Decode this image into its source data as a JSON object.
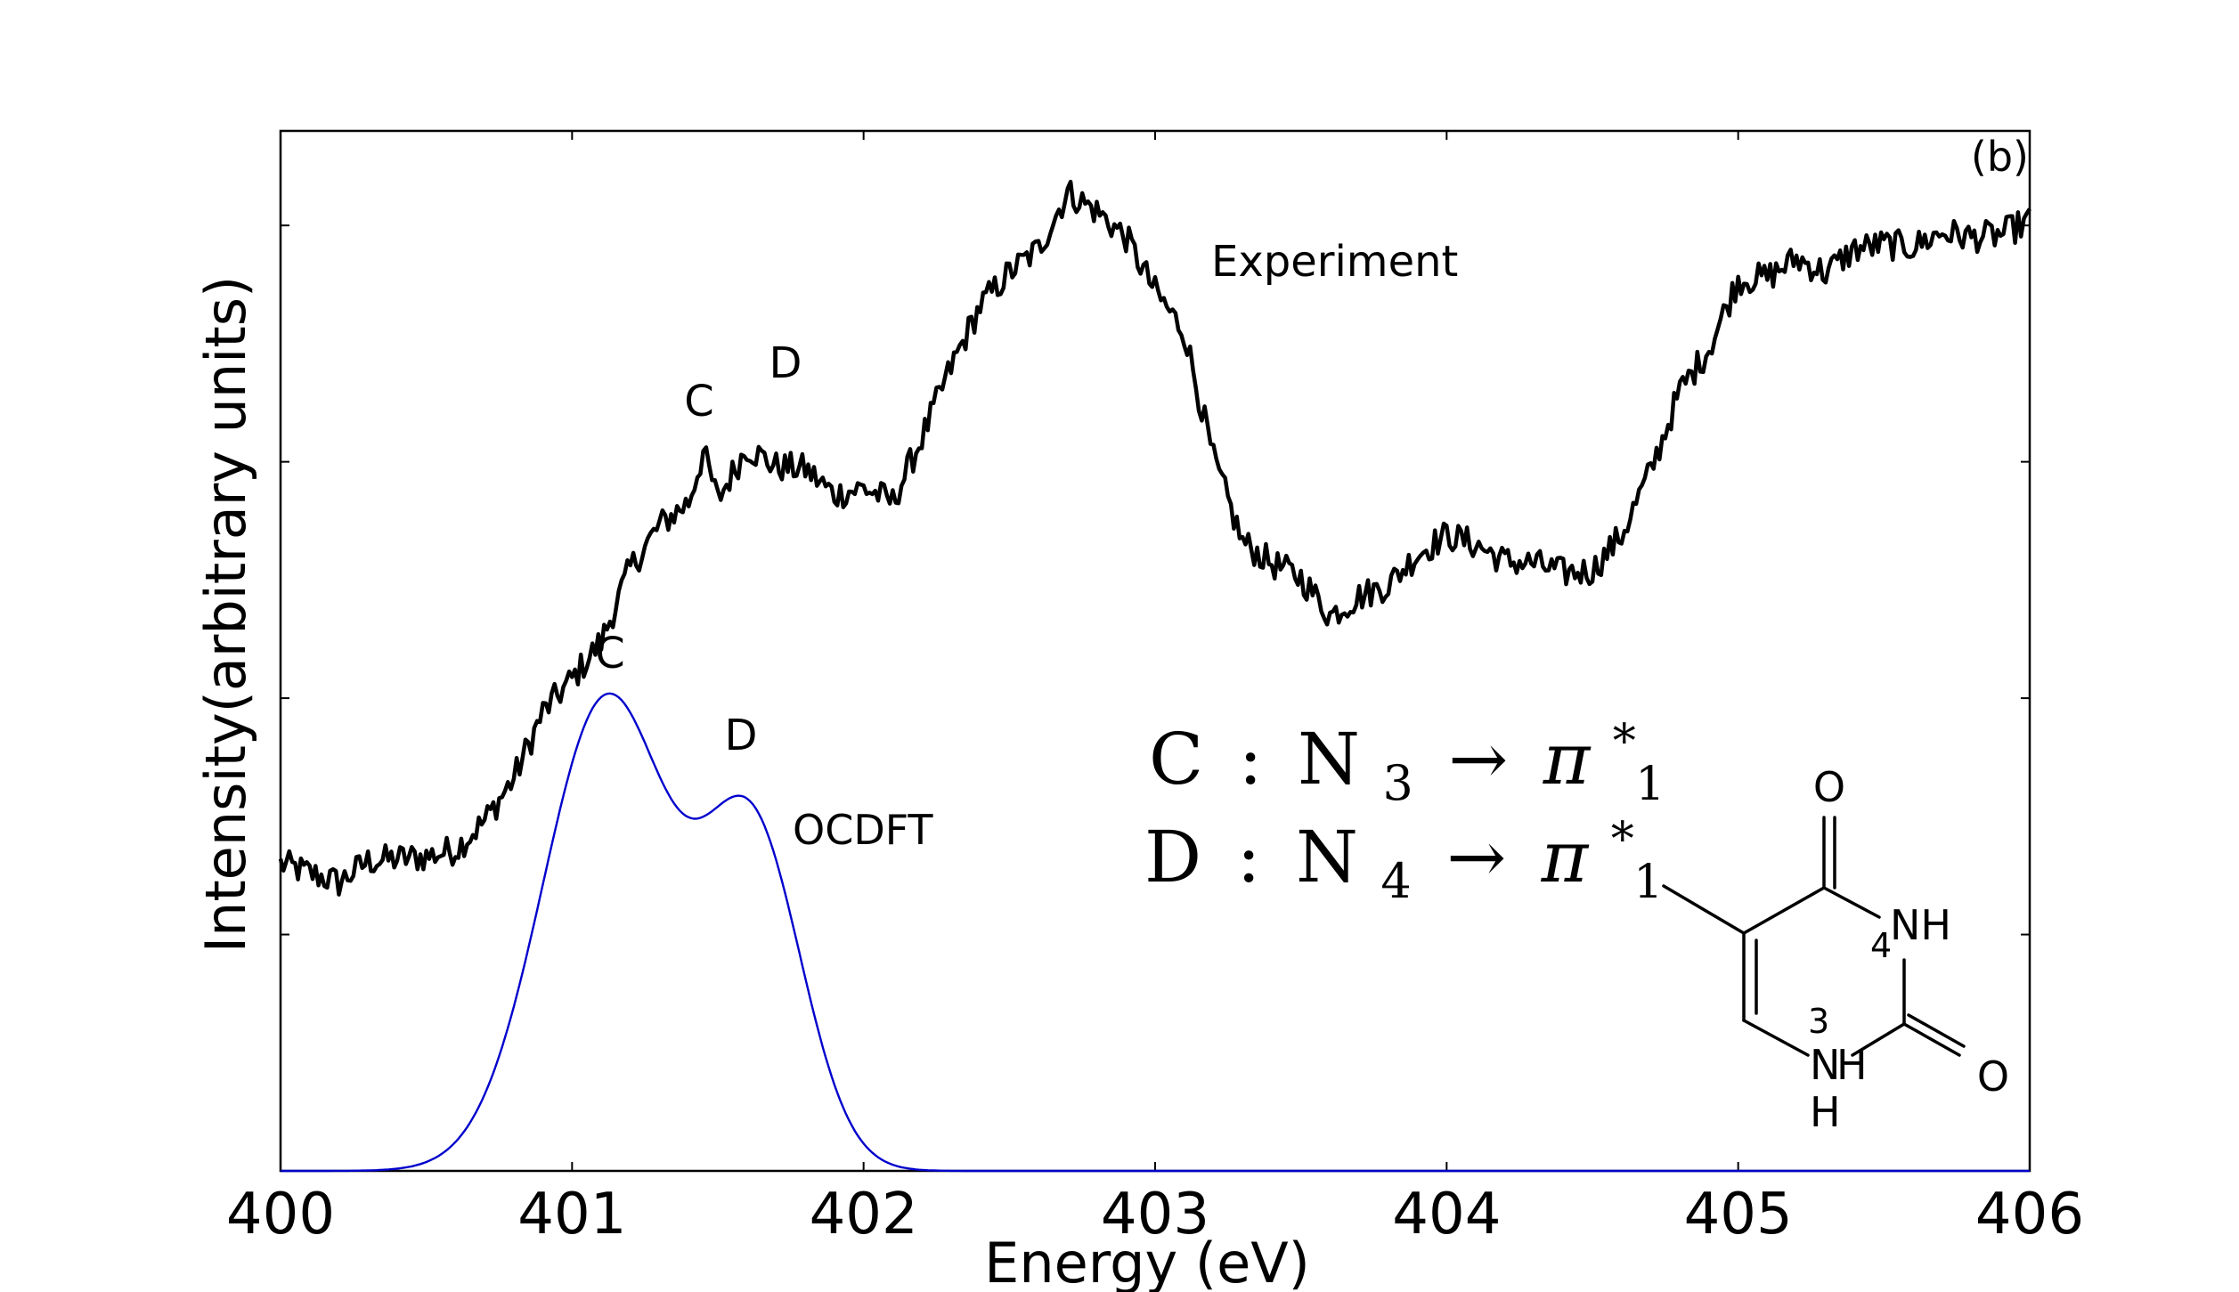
{
  "chart_data": {
    "type": "line",
    "panel_label": "(b)",
    "xlabel": "Energy (eV)",
    "ylabel": "Intensity(arbitrary units)",
    "xlim": [
      400,
      406
    ],
    "x_ticks": [
      "400",
      "401",
      "402",
      "403",
      "404",
      "405",
      "406"
    ],
    "y_tick_labels_shown": false,
    "grid": false,
    "legend": "none",
    "series": [
      {
        "name": "Experiment",
        "color": "#000000",
        "x": [
          400.0,
          400.1,
          400.2,
          400.3,
          400.4,
          400.5,
          400.6,
          400.7,
          400.8,
          400.9,
          401.0,
          401.1,
          401.2,
          401.3,
          401.4,
          401.45,
          401.5,
          401.6,
          401.7,
          401.8,
          401.9,
          402.0,
          402.1,
          402.2,
          402.3,
          402.4,
          402.5,
          402.6,
          402.7,
          402.8,
          402.9,
          403.0,
          403.1,
          403.2,
          403.3,
          403.4,
          403.5,
          403.6,
          403.7,
          403.8,
          403.9,
          404.0,
          404.1,
          404.2,
          404.3,
          404.4,
          404.5,
          404.6,
          404.7,
          404.8,
          404.9,
          405.0,
          405.1,
          405.2,
          405.3,
          405.4,
          405.5,
          405.6,
          405.7,
          405.8,
          405.9,
          406.0
        ],
        "y": [
          1.3,
          1.26,
          1.22,
          1.31,
          1.32,
          1.33,
          1.36,
          1.48,
          1.66,
          1.94,
          2.08,
          2.24,
          2.55,
          2.73,
          2.83,
          3.04,
          2.84,
          3.06,
          2.98,
          2.97,
          2.86,
          2.89,
          2.83,
          3.1,
          3.4,
          3.66,
          3.8,
          3.9,
          4.14,
          4.06,
          3.95,
          3.72,
          3.55,
          3.01,
          2.66,
          2.57,
          2.51,
          2.35,
          2.43,
          2.48,
          2.61,
          2.69,
          2.65,
          2.58,
          2.57,
          2.53,
          2.54,
          2.69,
          2.96,
          3.3,
          3.48,
          3.77,
          3.78,
          3.86,
          3.8,
          3.9,
          3.92,
          3.91,
          3.97,
          3.95,
          3.96,
          4.02
        ],
        "annotation": "Experiment",
        "peak_labels": [
          {
            "text": "C",
            "x": 401.45
          },
          {
            "text": "D",
            "x": 401.72
          }
        ]
      },
      {
        "name": "OCDFT",
        "color": "#0000cc",
        "peaks": [
          {
            "center": 401.12,
            "amplitude": 2.0,
            "sigma": 0.22
          },
          {
            "center": 401.62,
            "amplitude": 1.4,
            "sigma": 0.17
          }
        ],
        "annotation": "OCDFT",
        "peak_labels": [
          {
            "text": "C",
            "x": 401.12
          },
          {
            "text": "D",
            "x": 401.57
          }
        ]
      }
    ]
  },
  "assignments": {
    "C": {
      "letter": "C",
      "colon": ":",
      "atom": "N",
      "sub": "3",
      "arrow": "→",
      "orbital": "π",
      "orbital_sub": "1",
      "orbital_sup": "*"
    },
    "D": {
      "letter": "D",
      "colon": ":",
      "atom": "N",
      "sub": "4",
      "arrow": "→",
      "orbital": "π",
      "orbital_sub": "1",
      "orbital_sup": "*"
    }
  },
  "molecule": {
    "o_top": "O",
    "nh_top": "NH",
    "num_4": "4",
    "o_right": "O",
    "num_3": "3",
    "n_bottom": "N",
    "h_bottom_right": "H",
    "h_bottom": "H"
  }
}
